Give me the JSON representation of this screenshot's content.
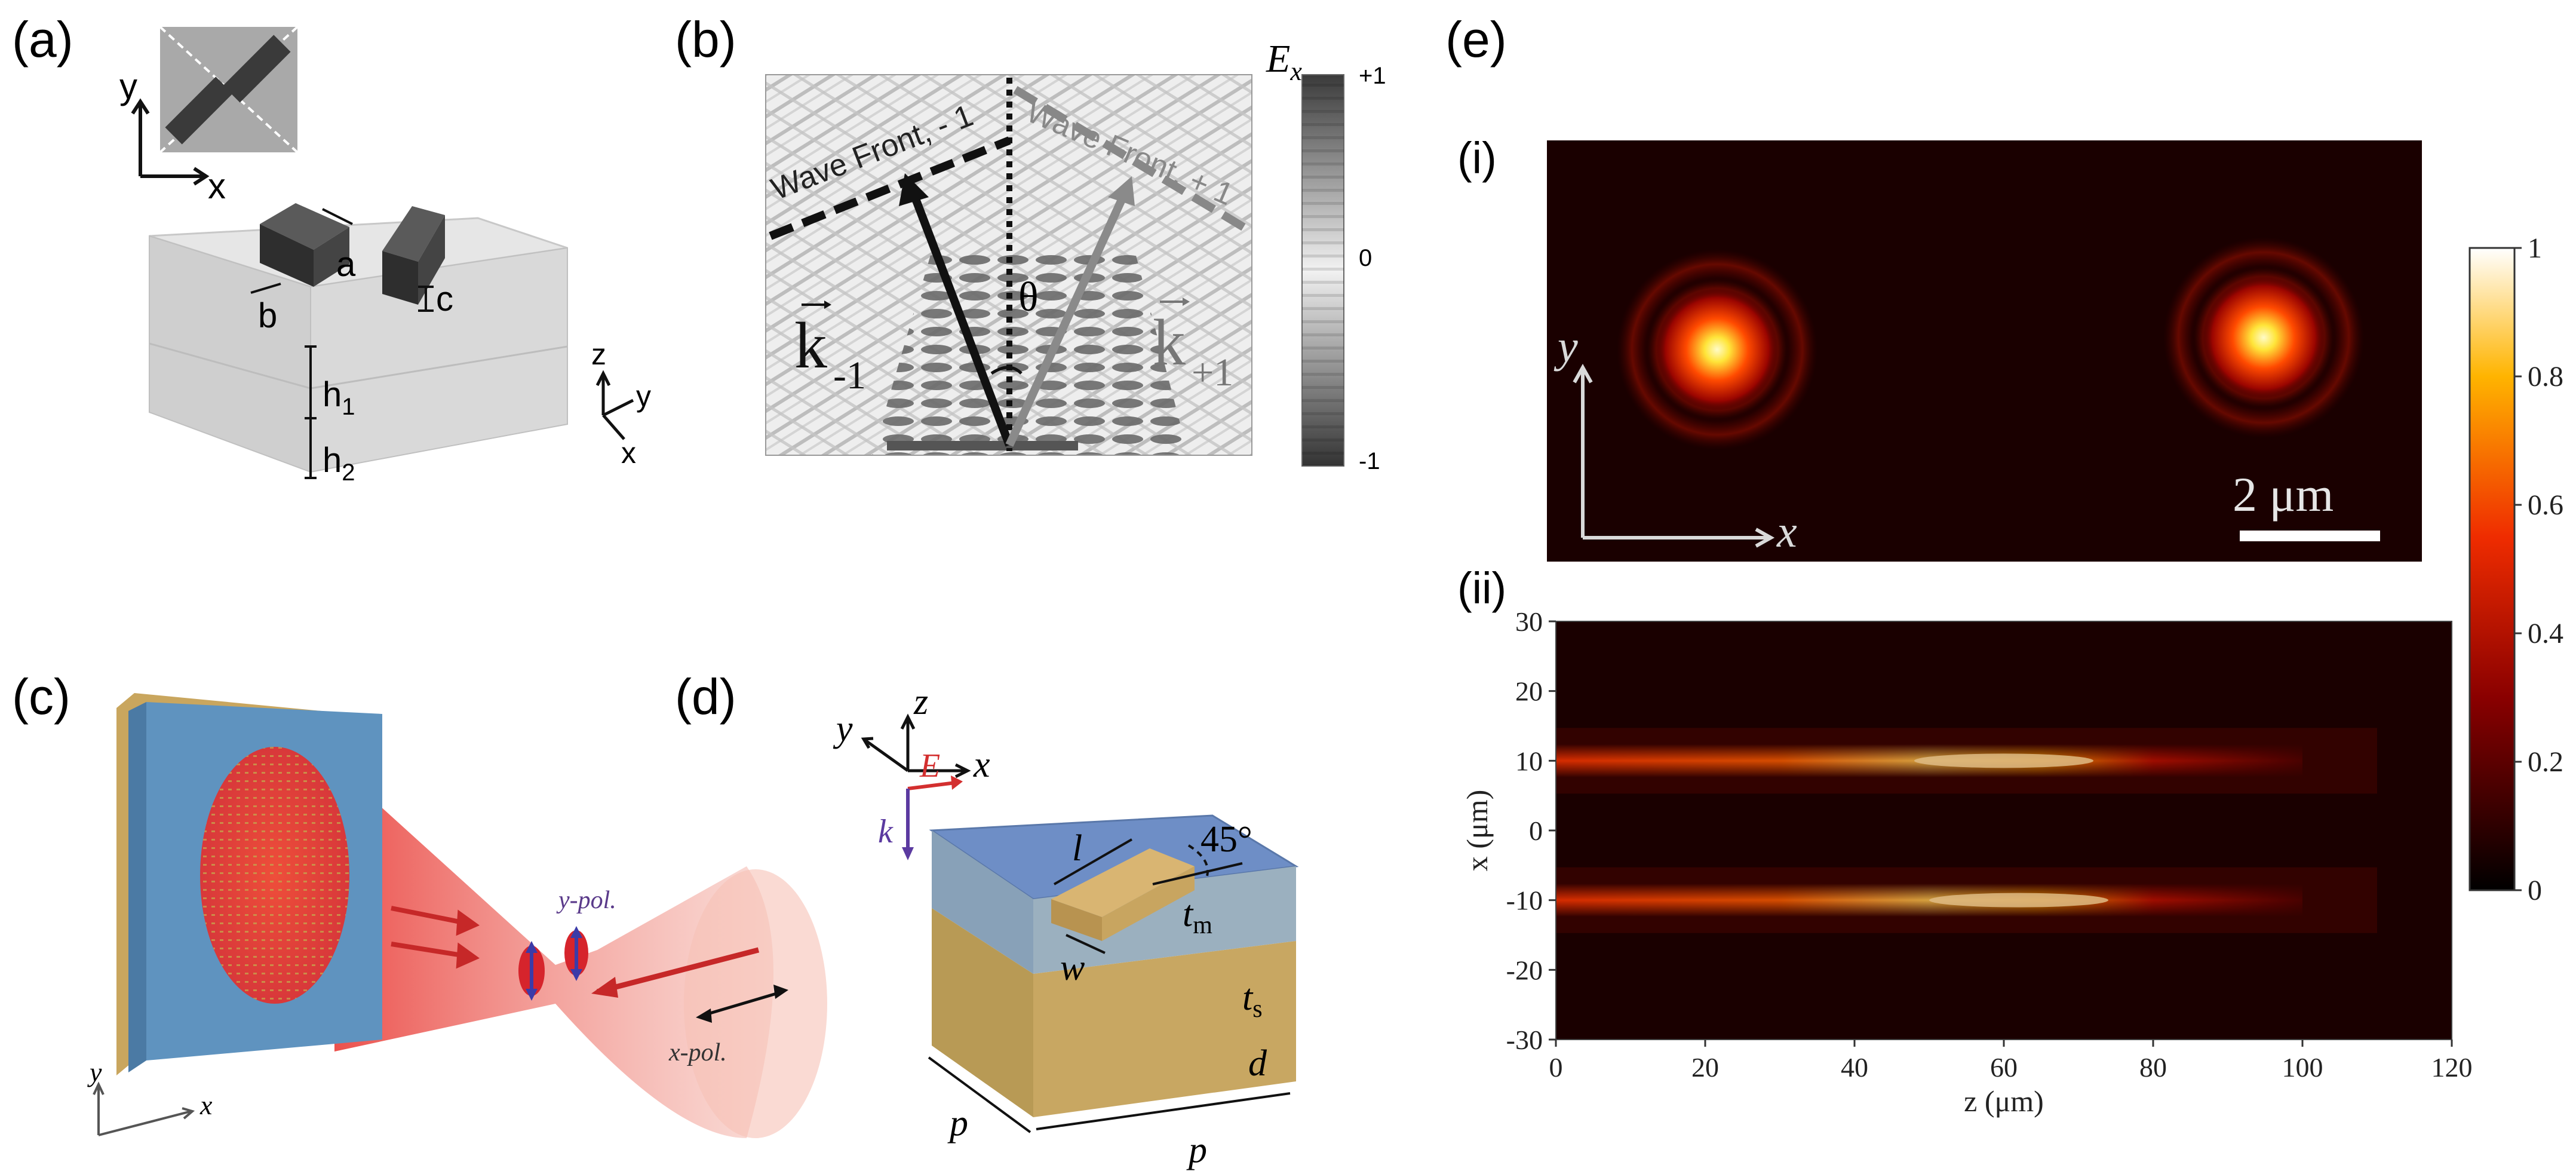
{
  "panels": {
    "a": {
      "label": "(a)",
      "inset_axes": {
        "y": "y",
        "x": "x"
      },
      "dims": {
        "a": "a",
        "b": "b",
        "c": "c",
        "h1": "h",
        "h1_sub": "1",
        "h2": "h",
        "h2_sub": "2"
      },
      "axes": {
        "z": "z",
        "y": "y",
        "x": "x"
      }
    },
    "b": {
      "label": "(b)",
      "colorbar": {
        "title": "E",
        "title_sub": "x",
        "ticks": [
          "+1",
          "0",
          "-1"
        ]
      },
      "wavefront_left": "Wave Front, - 1",
      "wavefront_right": "Wave Front, + 1",
      "theta": "θ",
      "k_left": "k",
      "k_left_sub": "-1",
      "k_right": "k",
      "k_right_sub": "+1"
    },
    "c": {
      "label": "(c)",
      "y_pol": "y-pol.",
      "x_pol": "x-pol.",
      "axis_y": "y",
      "axis_x": "x"
    },
    "d": {
      "label": "(d)",
      "axis_y": "y",
      "axis_z": "z",
      "axis_x": "x",
      "E": "E",
      "k": "k",
      "l": "l",
      "w": "w",
      "angle": "45°",
      "tm": "t",
      "tm_sub": "m",
      "ts": "t",
      "ts_sub": "s",
      "d": "d",
      "p1": "p",
      "p2": "p"
    },
    "e": {
      "label": "(e)",
      "sub_i": "(i)",
      "sub_ii": "(ii)",
      "scale_bar": "2 μm",
      "axis_y": "y",
      "axis_x": "x",
      "colorbar_ticks": [
        "1",
        "0.8",
        "0.6",
        "0.4",
        "0.2",
        "0"
      ]
    }
  },
  "colors": {
    "hot_dark": "#1a0000",
    "hot_red": "#e8230a",
    "hot_yellow": "#ffe54a",
    "blue_substrate": "#6f90c4",
    "gold_layer": "#c9a65e",
    "beam_red": "#e8322d"
  },
  "chart_data": {
    "type": "heatmap",
    "title": "",
    "xlabel": "z (μm)",
    "ylabel": "x (μm)",
    "xlim": [
      0,
      120
    ],
    "ylim": [
      -30,
      30
    ],
    "x_ticks": [
      0,
      20,
      40,
      60,
      80,
      100,
      120
    ],
    "y_ticks": [
      30,
      20,
      10,
      0,
      -10,
      -20,
      -30
    ],
    "colorbar_range": [
      0,
      1
    ],
    "series": [
      {
        "x_center": 10,
        "z_peak": 60,
        "peak_intensity": 1.0
      },
      {
        "x_center": -10,
        "z_peak": 62,
        "peak_intensity": 1.0
      }
    ]
  }
}
